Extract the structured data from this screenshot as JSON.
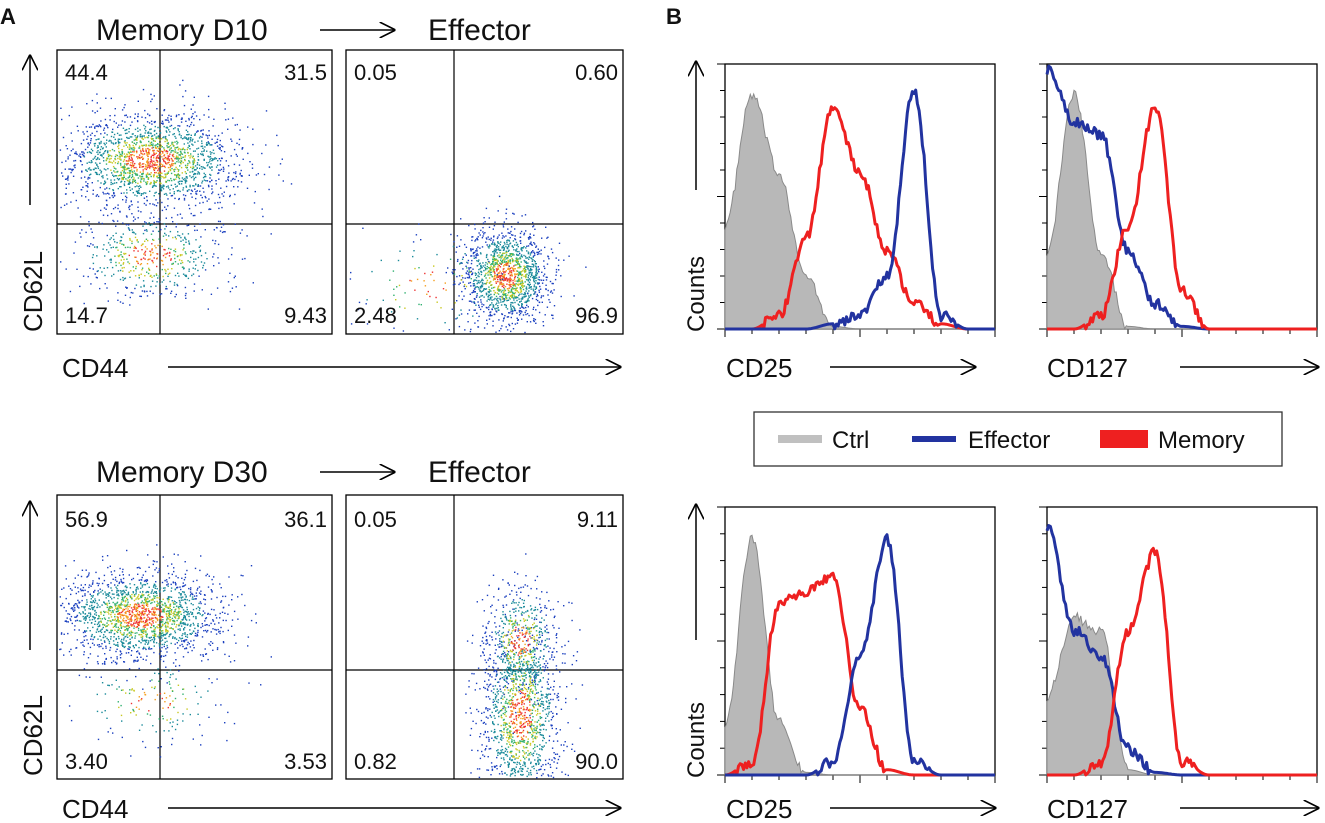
{
  "panel_labels": {
    "a": "A",
    "b": "B"
  },
  "colors": {
    "ctrl": "#b8b8b8",
    "ctrl_edge": "#8a8a8a",
    "effector": "#2233a0",
    "memory": "#ee2020",
    "axis": "#000000"
  },
  "flow": {
    "arrow_glyph": "⟶",
    "target": "Effector",
    "rows": [
      {
        "source": "Memory D10",
        "y_label": "CD62L",
        "x_label": "CD44",
        "left_quadrants": {
          "ul": "44.4",
          "ur": "31.5",
          "ll": "14.7",
          "lr": "9.43"
        },
        "right_quadrants": {
          "ul": "0.05",
          "ur": "0.60",
          "ll": "2.48",
          "lr": "96.9"
        }
      },
      {
        "source": "Memory D30",
        "y_label": "CD62L",
        "x_label": "CD44",
        "left_quadrants": {
          "ul": "56.9",
          "ur": "36.1",
          "ll": "3.40",
          "lr": "3.53"
        },
        "right_quadrants": {
          "ul": "0.05",
          "ur": "9.11",
          "ll": "0.82",
          "lr": "90.0"
        }
      }
    ]
  },
  "legend": {
    "ctrl": "Ctrl",
    "effector": "Effector",
    "memory": "Memory"
  },
  "chart_data": [
    {
      "type": "histogram",
      "title": "",
      "xlabel": "CD25",
      "ylabel": "Counts",
      "row": 1,
      "x": [
        0,
        0.1,
        0.2,
        0.3,
        0.4,
        0.5,
        0.6,
        0.7,
        0.8,
        0.9,
        1.0
      ],
      "series": [
        {
          "name": "Ctrl",
          "values": [
            0.4,
            0.9,
            0.6,
            0.2,
            0.01,
            0,
            0,
            0,
            0,
            0,
            0
          ]
        },
        {
          "name": "Memory",
          "values": [
            0,
            0,
            0.05,
            0.35,
            0.85,
            0.6,
            0.3,
            0.1,
            0.02,
            0,
            0
          ]
        },
        {
          "name": "Effector",
          "values": [
            0,
            0,
            0,
            0,
            0.02,
            0.05,
            0.2,
            0.92,
            0.05,
            0,
            0
          ]
        }
      ]
    },
    {
      "type": "histogram",
      "title": "",
      "xlabel": "CD127",
      "ylabel": "",
      "row": 1,
      "x": [
        0,
        0.1,
        0.2,
        0.3,
        0.4,
        0.5,
        0.6,
        0.7,
        0.8,
        0.9,
        1.0
      ],
      "series": [
        {
          "name": "Ctrl",
          "values": [
            0.3,
            0.9,
            0.3,
            0.01,
            0,
            0,
            0,
            0,
            0,
            0,
            0
          ]
        },
        {
          "name": "Effector",
          "values": [
            1.0,
            0.8,
            0.75,
            0.3,
            0.1,
            0.01,
            0,
            0,
            0,
            0,
            0
          ]
        },
        {
          "name": "Memory",
          "values": [
            0,
            0,
            0.05,
            0.4,
            0.85,
            0.15,
            0,
            0,
            0,
            0,
            0
          ]
        }
      ]
    },
    {
      "type": "histogram",
      "title": "",
      "xlabel": "CD25",
      "ylabel": "Counts",
      "row": 2,
      "x": [
        0,
        0.1,
        0.2,
        0.3,
        0.4,
        0.5,
        0.6,
        0.7,
        0.8,
        0.9,
        1.0
      ],
      "series": [
        {
          "name": "Ctrl",
          "values": [
            0.2,
            0.9,
            0.2,
            0.01,
            0,
            0,
            0,
            0,
            0,
            0,
            0
          ]
        },
        {
          "name": "Memory",
          "values": [
            0,
            0.05,
            0.65,
            0.7,
            0.75,
            0.25,
            0.02,
            0,
            0,
            0,
            0
          ]
        },
        {
          "name": "Effector",
          "values": [
            0,
            0,
            0,
            0,
            0.05,
            0.45,
            0.9,
            0.05,
            0,
            0,
            0
          ]
        }
      ]
    },
    {
      "type": "histogram",
      "title": "",
      "xlabel": "CD127",
      "ylabel": "",
      "row": 2,
      "x": [
        0,
        0.1,
        0.2,
        0.3,
        0.4,
        0.5,
        0.6,
        0.7,
        0.8,
        0.9,
        1.0
      ],
      "series": [
        {
          "name": "Ctrl",
          "values": [
            0.3,
            0.6,
            0.55,
            0.02,
            0,
            0,
            0,
            0,
            0,
            0,
            0
          ]
        },
        {
          "name": "Effector",
          "values": [
            0.95,
            0.55,
            0.45,
            0.1,
            0.01,
            0,
            0,
            0,
            0,
            0,
            0
          ]
        },
        {
          "name": "Memory",
          "values": [
            0,
            0,
            0.05,
            0.55,
            0.85,
            0.05,
            0,
            0,
            0,
            0,
            0
          ]
        }
      ]
    }
  ]
}
